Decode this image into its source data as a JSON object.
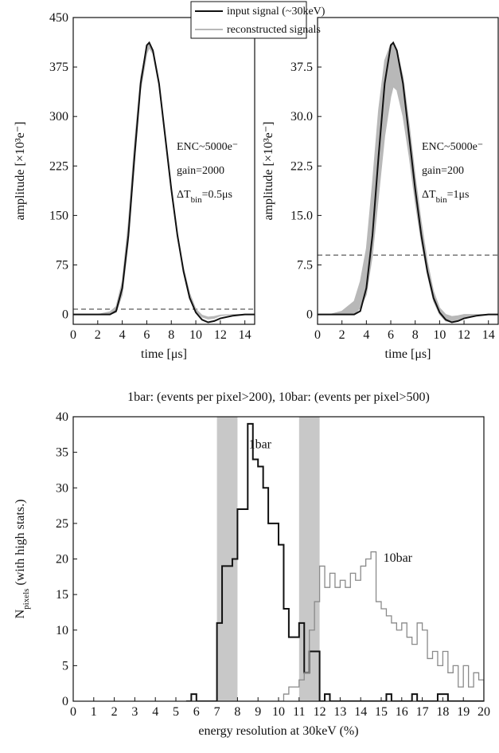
{
  "chart_data": [
    {
      "type": "line",
      "xlabel": "time [μs]",
      "ylabel": "amplitude [×10³e⁻]",
      "xlim": [
        0,
        14.8
      ],
      "ylim": [
        -15,
        450
      ],
      "xticks": [
        0,
        2,
        4,
        6,
        8,
        10,
        12,
        14
      ],
      "yticks": [
        0,
        75,
        150,
        225,
        300,
        375,
        450
      ],
      "legend": "upper right",
      "hline": 8,
      "annotations": [
        [
          "ENC~5000e⁻"
        ],
        [
          "gain=2000"
        ],
        [
          "ΔT",
          "bin",
          "=0.5μs"
        ]
      ],
      "x": [
        0,
        1,
        2,
        3,
        3.5,
        4,
        4.5,
        5,
        5.5,
        6,
        6.2,
        6.5,
        7,
        7.5,
        8,
        8.5,
        9,
        9.5,
        10,
        10.5,
        11,
        11.5,
        12,
        13,
        14,
        15
      ],
      "series": [
        {
          "name": "input signal (~30keV)",
          "color": "#111111",
          "values": [
            0,
            0,
            0,
            0,
            5,
            40,
            120,
            240,
            350,
            408,
            412,
            400,
            350,
            270,
            190,
            120,
            65,
            25,
            3,
            -8,
            -12,
            -10,
            -6,
            -2,
            0,
            0
          ]
        },
        {
          "name": "reconstructed signals",
          "color": "#b8b8b8",
          "values": [
            0,
            0,
            0,
            4,
            12,
            50,
            140,
            260,
            360,
            405,
            410,
            398,
            350,
            270,
            190,
            122,
            70,
            32,
            8,
            -1,
            -4,
            -3,
            -1,
            0,
            0,
            0
          ],
          "lower": [
            0,
            0,
            0,
            0,
            3,
            30,
            110,
            230,
            340,
            395,
            404,
            395,
            345,
            265,
            185,
            116,
            65,
            28,
            5,
            -4,
            -7,
            -6,
            -2,
            0,
            0,
            0
          ]
        }
      ]
    },
    {
      "type": "line",
      "xlabel": "time [μs]",
      "ylabel": "amplitude [×10³e⁻]",
      "xlim": [
        0,
        14.8
      ],
      "ylim": [
        -1.5,
        45
      ],
      "xticks": [
        0,
        2,
        4,
        6,
        8,
        10,
        12,
        14
      ],
      "yticks": [
        0,
        7.5,
        {
          "value": 15,
          "label": "15.0"
        },
        22.5,
        {
          "value": 30,
          "label": "30.0"
        },
        37.5
      ],
      "hline": 9,
      "annotations": [
        [
          "ENC~5000e⁻"
        ],
        [
          "gain=200"
        ],
        [
          "ΔT",
          "bin",
          "=1μs"
        ]
      ],
      "x": [
        0,
        1,
        2,
        3,
        3.5,
        4,
        4.5,
        5,
        5.5,
        6,
        6.2,
        6.5,
        7,
        7.5,
        8,
        8.5,
        9,
        9.5,
        10,
        10.5,
        11,
        11.5,
        12,
        13,
        14,
        15
      ],
      "series": [
        {
          "color": "#111111",
          "values": [
            0,
            0,
            0,
            0,
            0.5,
            4,
            12,
            24,
            35,
            40.8,
            41.2,
            40,
            35,
            27,
            19,
            12,
            6.5,
            2.5,
            0.3,
            -0.8,
            -1.2,
            -1,
            -0.6,
            -0.2,
            0,
            0
          ]
        },
        {
          "color": "#b8b8b8",
          "values": [
            0,
            0,
            0.5,
            2,
            5,
            10,
            20,
            31,
            38.5,
            41,
            41,
            40,
            36,
            29,
            21,
            14,
            8,
            3.5,
            1,
            0,
            -0.3,
            -0.2,
            0,
            0,
            0,
            0
          ],
          "lower": [
            0,
            0,
            0,
            0,
            1,
            3,
            9,
            18,
            27,
            33,
            34.5,
            34,
            30,
            24,
            17,
            11,
            6,
            2,
            0,
            -1,
            -1.2,
            -0.8,
            -0.4,
            0,
            0,
            0
          ]
        }
      ]
    },
    {
      "type": "histogram",
      "title": "1bar: (events per pixel>200), 10bar: (events per pixel>500)",
      "xlabel": "energy resolution at 30keV (%)",
      "ylabel": [
        "N",
        "pixels",
        " (with high stats.)"
      ],
      "xlim": [
        0,
        20
      ],
      "ylim": [
        0,
        40
      ],
      "xticks": [
        0,
        1,
        2,
        3,
        4,
        5,
        6,
        7,
        8,
        9,
        10,
        11,
        12,
        13,
        14,
        15,
        16,
        17,
        18,
        19,
        20
      ],
      "yticks": [
        0,
        5,
        10,
        15,
        20,
        25,
        30,
        35,
        40
      ],
      "shaded": [
        [
          7,
          8
        ],
        [
          11,
          12
        ]
      ],
      "bins": [
        5.5,
        5.75,
        6,
        6.25,
        6.5,
        6.75,
        7,
        7.25,
        7.5,
        7.75,
        8,
        8.25,
        8.5,
        8.75,
        9,
        9.25,
        9.5,
        9.75,
        10,
        10.25,
        10.5,
        10.75,
        11,
        11.25,
        11.5,
        11.75,
        12,
        12.25,
        12.5,
        12.75,
        13,
        13.25,
        13.5,
        13.75,
        14,
        14.25,
        14.5,
        14.75,
        15,
        15.25,
        15.5,
        15.75,
        16,
        16.25,
        16.5,
        16.75,
        17,
        17.25,
        17.5,
        17.75,
        18,
        18.25,
        18.5,
        18.75,
        19,
        19.25,
        19.5,
        19.75,
        20
      ],
      "series": [
        {
          "name": "1bar",
          "color": "#111111",
          "values": [
            0,
            1,
            0,
            0,
            0,
            0,
            11,
            19,
            19,
            20,
            27,
            27,
            39,
            34,
            33,
            30,
            25,
            25,
            22,
            13,
            9,
            9,
            11,
            4,
            7,
            7,
            0,
            1,
            0,
            0,
            0,
            0,
            0,
            0,
            0,
            0,
            0,
            0,
            0,
            1,
            0,
            0,
            0,
            0,
            1,
            0,
            0,
            0,
            0,
            1,
            1,
            0,
            0,
            0,
            0,
            0,
            0,
            0
          ]
        },
        {
          "name": "10bar",
          "color": "#8a8a8a",
          "values": [
            0,
            0,
            0,
            0,
            0,
            0,
            0,
            0,
            0,
            0,
            0,
            0,
            0,
            0,
            0,
            0,
            0,
            0,
            0,
            1,
            2,
            2,
            3,
            4,
            10,
            14,
            19,
            16,
            18,
            16,
            17,
            16,
            18,
            17,
            19,
            20,
            21,
            14,
            13,
            12,
            11,
            10,
            11,
            9,
            8,
            11,
            10,
            6,
            7,
            5,
            7,
            4,
            5,
            2,
            5,
            2,
            4,
            3
          ]
        }
      ]
    }
  ]
}
